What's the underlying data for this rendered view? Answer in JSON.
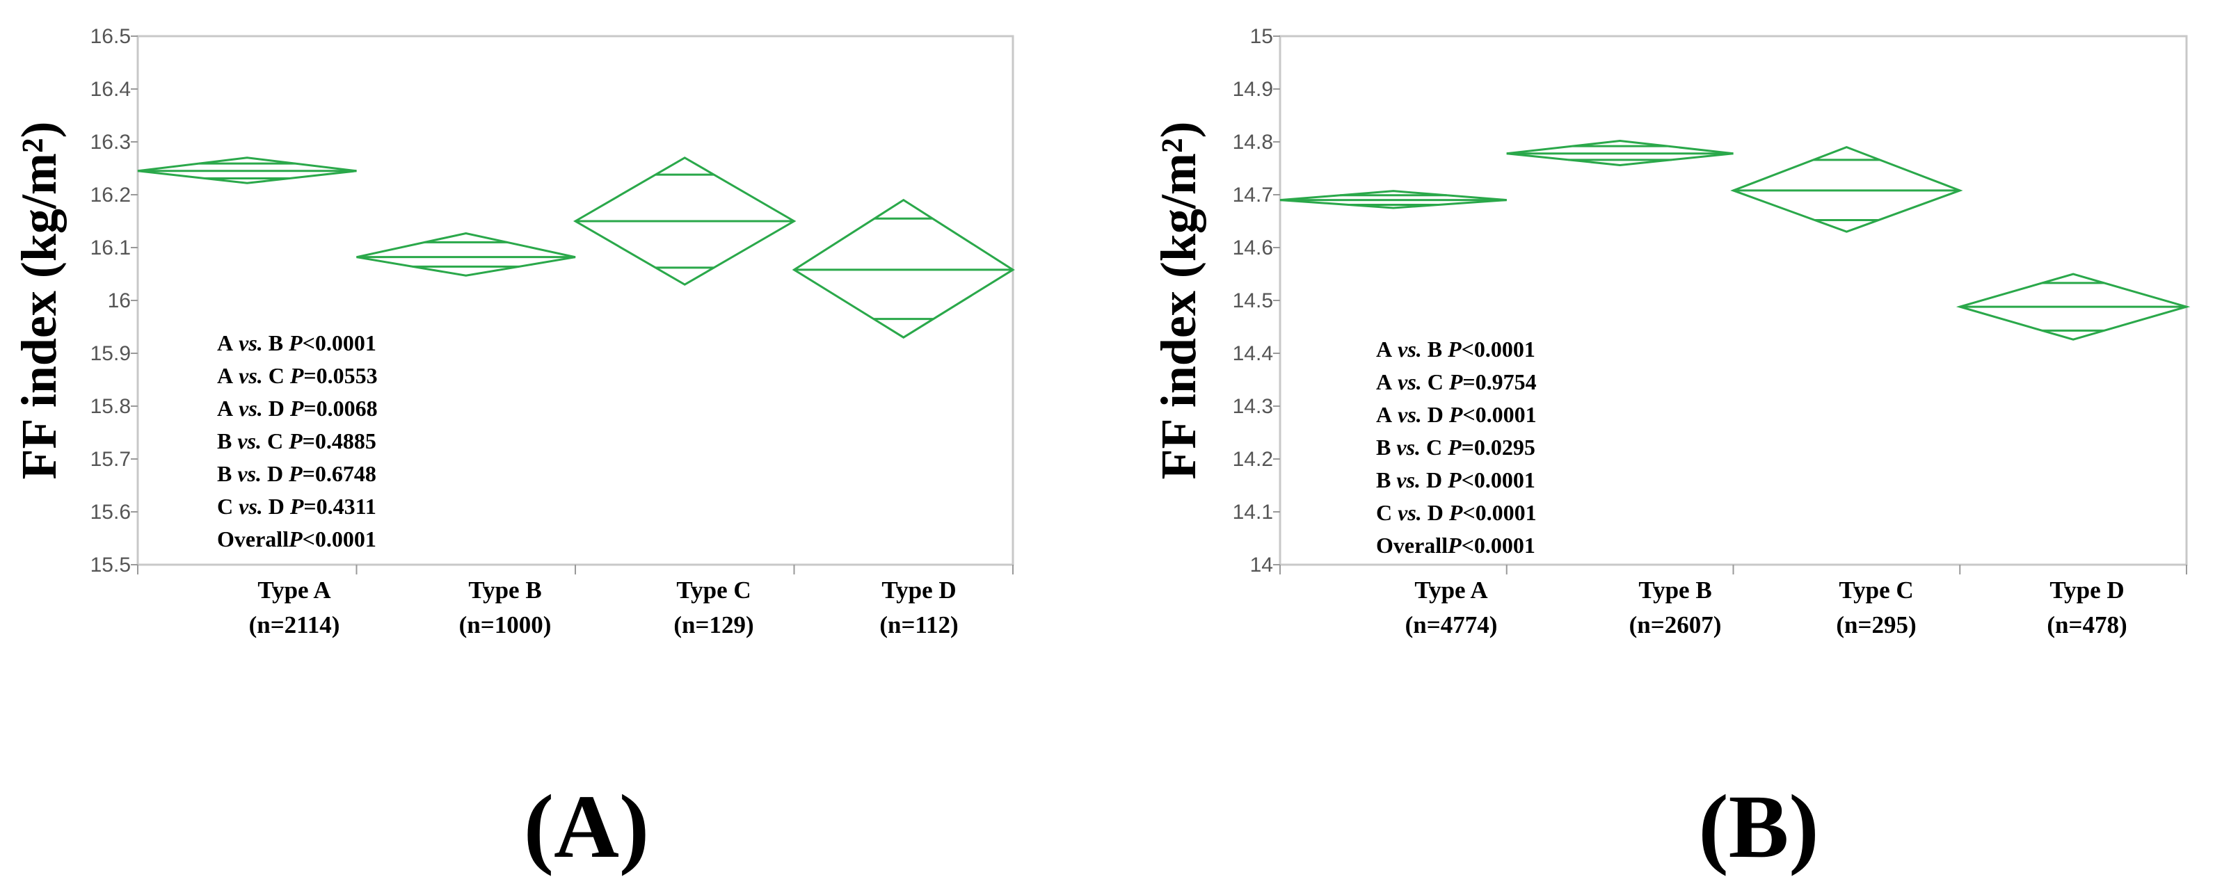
{
  "chart_data": [
    {
      "type": "diamond",
      "panel_label": "(A)",
      "ylabel": "FF index (kg/m²)",
      "ylim": [
        15.5,
        16.5
      ],
      "yticks": [
        "16.5",
        "16.4",
        "16.3",
        "16.2",
        "16.1",
        "16",
        "15.9",
        "15.8",
        "15.7",
        "15.6",
        "15.5"
      ],
      "grid": false,
      "color": "#2aa84a",
      "categories": [
        {
          "name": "Type A",
          "n": "(n=2114)",
          "mean": 16.245,
          "ci_low": 16.222,
          "ci_high": 16.27,
          "overlap_low": 16.231,
          "overlap_high": 16.259
        },
        {
          "name": "Type B",
          "n": "(n=1000)",
          "mean": 16.082,
          "ci_low": 16.047,
          "ci_high": 16.127,
          "overlap_low": 16.064,
          "overlap_high": 16.11
        },
        {
          "name": "Type C",
          "n": "(n=129)",
          "mean": 16.15,
          "ci_low": 16.03,
          "ci_high": 16.27,
          "overlap_low": 16.062,
          "overlap_high": 16.238
        },
        {
          "name": "Type D",
          "n": "(n=112)",
          "mean": 16.058,
          "ci_low": 15.93,
          "ci_high": 16.19,
          "overlap_low": 15.965,
          "overlap_high": 16.155
        }
      ],
      "annotations": [
        {
          "g1": "A",
          "vs": "vs.",
          "g2": "B",
          "p": "P",
          "val": "<0.0001"
        },
        {
          "g1": "A",
          "vs": "vs.",
          "g2": "C",
          "p": "P",
          "val": "=0.0553"
        },
        {
          "g1": "A",
          "vs": "vs.",
          "g2": "D",
          "p": "P",
          "val": "=0.0068"
        },
        {
          "g1": "B",
          "vs": "vs.",
          "g2": "C",
          "p": "P",
          "val": "=0.4885"
        },
        {
          "g1": "B",
          "vs": "vs.",
          "g2": "D",
          "p": "P",
          "val": "=0.6748"
        },
        {
          "g1": "C",
          "vs": "vs.",
          "g2": "D",
          "p": "P",
          "val": "=0.4311"
        }
      ],
      "overall": {
        "label": "Overall",
        "p": "P",
        "val": "<0.0001"
      }
    },
    {
      "type": "diamond",
      "panel_label": "(B)",
      "ylabel": "FF index (kg/m²)",
      "ylim": [
        14,
        15
      ],
      "yticks": [
        "15",
        "14.9",
        "14.8",
        "14.7",
        "14.6",
        "14.5",
        "14.4",
        "14.3",
        "14.2",
        "14.1",
        "14"
      ],
      "grid": false,
      "color": "#2aa84a",
      "categories": [
        {
          "name": "Type A",
          "n": "(n=4774)",
          "mean": 14.69,
          "ci_low": 14.675,
          "ci_high": 14.707,
          "overlap_low": 14.681,
          "overlap_high": 14.699
        },
        {
          "name": "Type B",
          "n": "(n=2607)",
          "mean": 14.778,
          "ci_low": 14.756,
          "ci_high": 14.802,
          "overlap_low": 14.766,
          "overlap_high": 14.792
        },
        {
          "name": "Type C",
          "n": "(n=295)",
          "mean": 14.708,
          "ci_low": 14.63,
          "ci_high": 14.79,
          "overlap_low": 14.652,
          "overlap_high": 14.766
        },
        {
          "name": "Type D",
          "n": "(n=478)",
          "mean": 14.488,
          "ci_low": 14.426,
          "ci_high": 14.55,
          "overlap_low": 14.443,
          "overlap_high": 14.533
        }
      ],
      "annotations": [
        {
          "g1": "A",
          "vs": "vs.",
          "g2": "B",
          "p": "P",
          "val": "<0.0001"
        },
        {
          "g1": "A",
          "vs": "vs.",
          "g2": "C",
          "p": "P",
          "val": "=0.9754"
        },
        {
          "g1": "A",
          "vs": "vs.",
          "g2": "D",
          "p": "P",
          "val": "<0.0001"
        },
        {
          "g1": "B",
          "vs": "vs.",
          "g2": "C",
          "p": "P",
          "val": "=0.0295"
        },
        {
          "g1": "B",
          "vs": "vs.",
          "g2": "D",
          "p": "P",
          "val": "<0.0001"
        },
        {
          "g1": "C",
          "vs": "vs.",
          "g2": "D",
          "p": "P",
          "val": "<0.0001"
        }
      ],
      "overall": {
        "label": "Overall",
        "p": "P",
        "val": "<0.0001"
      }
    }
  ]
}
